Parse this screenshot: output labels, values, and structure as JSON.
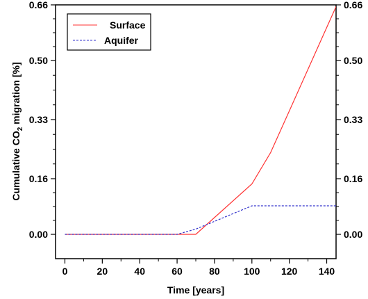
{
  "chart_data": {
    "type": "line",
    "title": "",
    "xlabel": "Time [years]",
    "ylabel_parts": {
      "before": "Cumulative CO",
      "subscript": "2",
      "after": " migration [%]"
    },
    "xlim": [
      -5,
      145
    ],
    "ylim": [
      -0.07,
      0.66
    ],
    "x_ticks": [
      0,
      20,
      40,
      60,
      80,
      100,
      120,
      140
    ],
    "x_tick_labels": [
      "0",
      "20",
      "40",
      "60",
      "80",
      "100",
      "120",
      "140"
    ],
    "y_ticks": [
      0.0,
      0.16,
      0.33,
      0.5,
      0.66
    ],
    "y_tick_labels": [
      "0.00",
      "0.16",
      "0.33",
      "0.50",
      "0.66"
    ],
    "right_y_axis_labels": true,
    "grid": false,
    "legend_placement": "top-left",
    "series": [
      {
        "name": "Surface",
        "color": "#ff3333",
        "style": "solid",
        "x": [
          0,
          60,
          70,
          100,
          110,
          120,
          145
        ],
        "y": [
          0.0,
          0.0,
          0.0,
          0.145,
          0.235,
          0.355,
          0.655
        ]
      },
      {
        "name": "Aquifer",
        "color": "#3333cc",
        "style": "dashed",
        "x": [
          0,
          60,
          70,
          100,
          145
        ],
        "y": [
          0.0,
          0.0,
          0.015,
          0.082,
          0.082
        ]
      }
    ]
  }
}
